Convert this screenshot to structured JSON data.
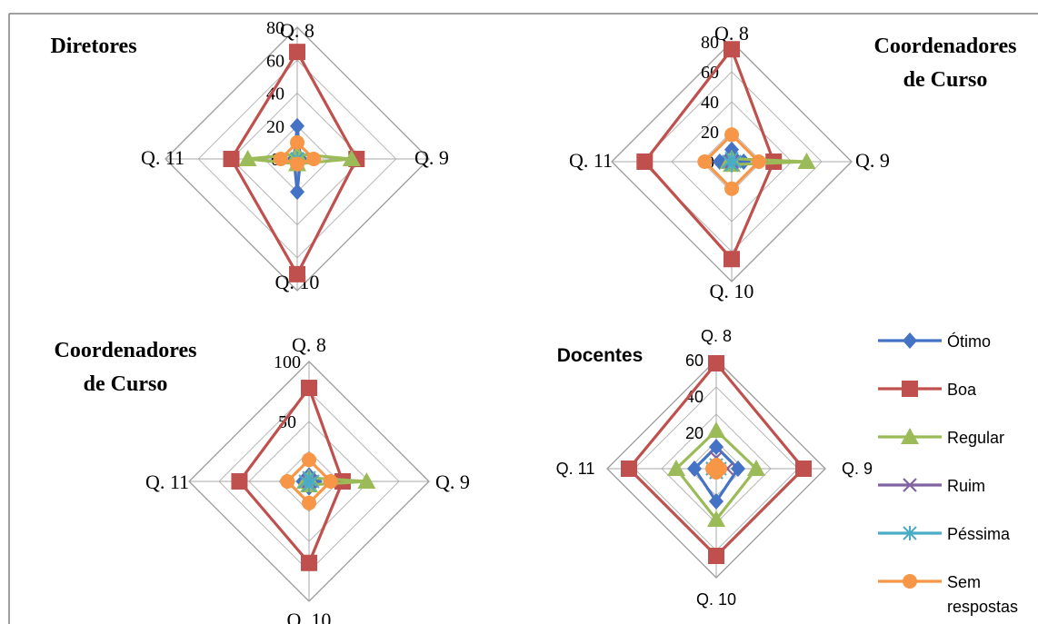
{
  "series_styles": [
    {
      "name": "Ótimo",
      "color": "#4472C4",
      "marker": "diamond"
    },
    {
      "name": "Boa",
      "color": "#C0504D",
      "marker": "square"
    },
    {
      "name": "Regular",
      "color": "#9BBB59",
      "marker": "triangle"
    },
    {
      "name": "Ruim",
      "color": "#8064A2",
      "marker": "x"
    },
    {
      "name": "Péssima",
      "color": "#4BACC6",
      "marker": "star"
    },
    {
      "name": "Sem respostas",
      "color": "#F79646",
      "marker": "circle"
    }
  ],
  "legend": {
    "entries": [
      {
        "lines": [
          "Ótimo"
        ]
      },
      {
        "lines": [
          "Boa"
        ]
      },
      {
        "lines": [
          "Regular"
        ]
      },
      {
        "lines": [
          "Ruim"
        ]
      },
      {
        "lines": [
          "Péssima"
        ]
      },
      {
        "lines": [
          "Sem",
          "respostas"
        ]
      }
    ]
  },
  "chart_data": [
    {
      "type": "radar",
      "title": "Diretores",
      "title_lines": [
        "Diretores"
      ],
      "categories": [
        "Q. 8",
        "Q. 9",
        "Q. 10",
        "Q. 11"
      ],
      "ticks": [
        0,
        20,
        40,
        60,
        80
      ],
      "ylim": [
        0,
        80
      ],
      "series": [
        {
          "name": "Ótimo",
          "values": [
            20,
            2,
            20,
            2
          ]
        },
        {
          "name": "Boa",
          "values": [
            65,
            36,
            70,
            40
          ]
        },
        {
          "name": "Regular",
          "values": [
            3,
            33,
            3,
            30
          ]
        },
        {
          "name": "Ruim",
          "values": [
            0,
            0,
            0,
            0
          ]
        },
        {
          "name": "Péssima",
          "values": [
            0,
            0,
            0,
            0
          ]
        },
        {
          "name": "Sem respostas",
          "values": [
            10,
            10,
            3,
            10
          ]
        }
      ]
    },
    {
      "type": "radar",
      "title": "Coordenadores de Curso",
      "title_lines": [
        "Coordenadores",
        "de Curso"
      ],
      "categories": [
        "Q. 8",
        "Q. 9",
        "Q. 10",
        "Q. 11"
      ],
      "ticks": [
        0,
        20,
        40,
        60,
        80
      ],
      "ylim": [
        0,
        80
      ],
      "series": [
        {
          "name": "Ótimo",
          "values": [
            8,
            8,
            2,
            8
          ]
        },
        {
          "name": "Boa",
          "values": [
            75,
            28,
            65,
            58
          ]
        },
        {
          "name": "Regular",
          "values": [
            2,
            50,
            2,
            2
          ]
        },
        {
          "name": "Ruim",
          "values": [
            0,
            0,
            0,
            0
          ]
        },
        {
          "name": "Péssima",
          "values": [
            2,
            2,
            2,
            2
          ]
        },
        {
          "name": "Sem respostas",
          "values": [
            18,
            18,
            18,
            18
          ]
        }
      ]
    },
    {
      "type": "radar",
      "title": "Coordenadores de Curso",
      "title_lines": [
        "Coordenadores",
        "de Curso"
      ],
      "categories": [
        "Q. 8",
        "Q. 9",
        "Q. 10",
        "Q. 11"
      ],
      "ticks": [
        0,
        50,
        100
      ],
      "ylim": [
        0,
        100
      ],
      "series": [
        {
          "name": "Ótimo",
          "values": [
            5,
            5,
            5,
            5
          ]
        },
        {
          "name": "Boa",
          "values": [
            78,
            28,
            68,
            58
          ]
        },
        {
          "name": "Regular",
          "values": [
            3,
            48,
            3,
            3
          ]
        },
        {
          "name": "Ruim",
          "values": [
            0,
            0,
            0,
            0
          ]
        },
        {
          "name": "Péssima",
          "values": [
            3,
            3,
            3,
            3
          ]
        },
        {
          "name": "Sem respostas",
          "values": [
            18,
            18,
            18,
            18
          ]
        }
      ]
    },
    {
      "type": "radar",
      "title": "Docentes",
      "title_lines": [
        "Docentes"
      ],
      "categories": [
        "Q. 8",
        "Q. 9",
        "Q. 10",
        "Q. 11"
      ],
      "ticks": [
        0,
        20,
        40,
        60
      ],
      "ylim": [
        0,
        60
      ],
      "series": [
        {
          "name": "Ótimo",
          "values": [
            12,
            12,
            18,
            12
          ]
        },
        {
          "name": "Boa",
          "values": [
            58,
            48,
            48,
            48
          ]
        },
        {
          "name": "Regular",
          "values": [
            21,
            22,
            28,
            22
          ]
        },
        {
          "name": "Ruim",
          "values": [
            6,
            6,
            2,
            2
          ]
        },
        {
          "name": "Péssima",
          "values": [
            2,
            2,
            2,
            2
          ]
        },
        {
          "name": "Sem respostas",
          "values": [
            2,
            2,
            2,
            2
          ]
        }
      ]
    }
  ]
}
